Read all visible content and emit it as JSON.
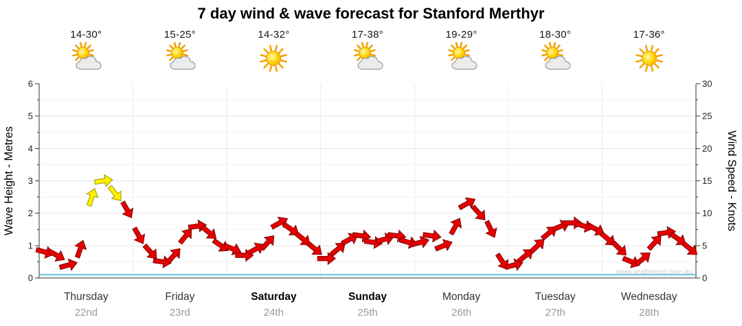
{
  "title": "7 day wind & wave forecast for Stanford Merthyr",
  "watermark": "www.seabreeze.com.au",
  "axes": {
    "left_label": "Wave Height - Metres",
    "right_label": "Wind Speed - Knots",
    "left_ticks": [
      0,
      1,
      2,
      3,
      4,
      5,
      6
    ],
    "right_ticks": [
      0,
      5,
      10,
      15,
      20,
      25,
      30
    ]
  },
  "days": [
    {
      "name": "Thursday",
      "date": "22nd",
      "temp": "14-30°",
      "icon": "sun-cloud",
      "weekend": false
    },
    {
      "name": "Friday",
      "date": "23rd",
      "temp": "15-25°",
      "icon": "sun-cloud",
      "weekend": false
    },
    {
      "name": "Saturday",
      "date": "24th",
      "temp": "14-32°",
      "icon": "sun",
      "weekend": true
    },
    {
      "name": "Sunday",
      "date": "25th",
      "temp": "17-38°",
      "icon": "sun-cloud",
      "weekend": true
    },
    {
      "name": "Monday",
      "date": "26th",
      "temp": "19-29°",
      "icon": "sun-cloud",
      "weekend": false
    },
    {
      "name": "Tuesday",
      "date": "27th",
      "temp": "18-30°",
      "icon": "sun-cloud",
      "weekend": false
    },
    {
      "name": "Wednesday",
      "date": "28th",
      "temp": "17-36°",
      "icon": "sun",
      "weekend": false
    }
  ],
  "chart_data": {
    "type": "line",
    "marker": "wind-arrow",
    "title": "7 day wind & wave forecast for Stanford Merthyr",
    "ylabel_left": "Wave Height - Metres",
    "ylabel_right": "Wind Speed - Knots",
    "ylim_left_metres": [
      0,
      6
    ],
    "ylim_right_knots": [
      0,
      30
    ],
    "grid": true,
    "legend": false,
    "points_per_day": 8,
    "categories": [
      "Thursday 22nd",
      "Friday 23rd",
      "Saturday 24th",
      "Sunday 25th",
      "Monday 26th",
      "Tuesday 27th",
      "Wednesday 28th"
    ],
    "series": [
      {
        "name": "Wind Speed",
        "unit": "knots",
        "values": [
          4,
          3.5,
          2,
          4.5,
          12.5,
          15,
          13,
          10.5,
          6.5,
          4,
          2.5,
          3.5,
          6.5,
          8,
          7,
          5,
          4.5,
          3.5,
          4.5,
          5.5,
          8.5,
          7.5,
          6,
          4.5,
          3,
          4.5,
          6,
          6.5,
          5.5,
          6,
          6.5,
          5.5,
          5.5,
          6.5,
          5,
          8,
          11.5,
          10,
          7.5,
          2.5,
          2,
          3.5,
          5,
          7,
          8,
          8.5,
          8,
          7.5,
          6,
          4.5,
          2.5,
          3,
          5.5,
          7,
          6,
          4.5
        ]
      },
      {
        "name": "Wave Height",
        "unit": "metres",
        "flat_value": 0.1
      }
    ],
    "arrow_colors": {
      "light_wind": "#e60000",
      "moderate_wind": "#ffee00"
    },
    "arrow_outline": {
      "light_wind": "#7d0000",
      "moderate_wind": "#999900"
    },
    "moderate_threshold_knots": 12
  },
  "colors": {
    "axis": "#333333",
    "grid_major": "#e2e2e2",
    "grid_minor": "#f2f2f2",
    "grid_day": "#ececec",
    "wave_line": "#62c6e0",
    "tick_text": "#222222",
    "day_text": "#333333",
    "weekend_text": "#000000",
    "date_text": "#999999",
    "watermark": "#cccccc"
  }
}
